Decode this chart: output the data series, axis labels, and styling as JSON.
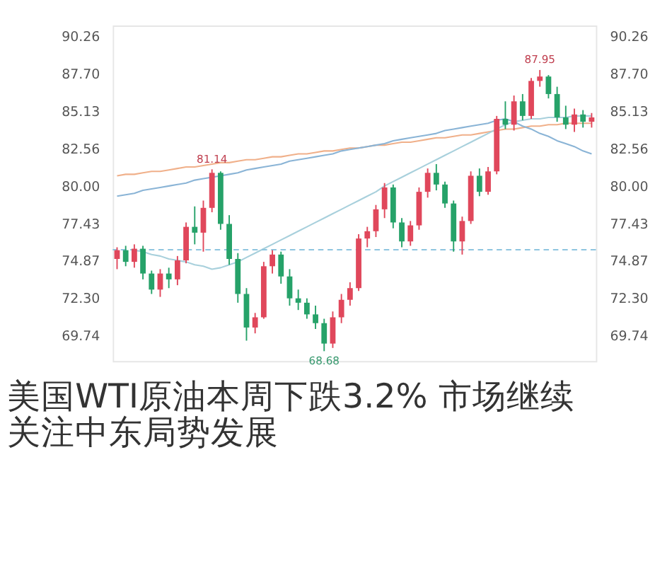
{
  "chart_data": {
    "type": "candlestick",
    "title": "美国WTI原油本周下跌3.2% 市场继续关注中东局势发展",
    "categories": [
      null,
      null,
      null,
      null,
      null,
      null,
      null,
      null,
      null,
      null,
      null,
      null,
      null,
      null,
      null,
      null,
      null,
      null,
      null,
      null,
      null,
      null,
      null,
      null,
      null,
      null,
      null,
      null,
      null,
      null,
      null,
      null,
      null,
      null,
      null,
      null,
      null,
      null,
      null,
      null,
      null,
      null,
      null,
      null,
      null,
      null,
      null,
      null,
      null,
      null,
      null,
      null,
      null,
      null,
      null,
      null
    ],
    "ohlc": [
      [
        75.0,
        75.8,
        74.3,
        75.6
      ],
      [
        75.6,
        75.9,
        74.5,
        74.8
      ],
      [
        74.8,
        76.0,
        74.4,
        75.7
      ],
      [
        75.7,
        75.9,
        73.6,
        74.0
      ],
      [
        74.0,
        74.2,
        72.6,
        72.9
      ],
      [
        72.9,
        74.3,
        72.4,
        74.0
      ],
      [
        74.0,
        74.4,
        73.0,
        73.6
      ],
      [
        73.6,
        75.2,
        73.2,
        74.9
      ],
      [
        74.9,
        77.5,
        74.7,
        77.2
      ],
      [
        77.2,
        78.6,
        76.0,
        76.8
      ],
      [
        76.8,
        79.0,
        75.5,
        78.5
      ],
      [
        78.5,
        81.14,
        78.2,
        80.9
      ],
      [
        80.9,
        81.0,
        77.0,
        77.4
      ],
      [
        77.4,
        78.0,
        74.6,
        75.0
      ],
      [
        75.0,
        75.4,
        72.0,
        72.6
      ],
      [
        72.6,
        73.0,
        69.4,
        70.3
      ],
      [
        70.3,
        71.3,
        69.9,
        71.0
      ],
      [
        71.0,
        74.8,
        70.9,
        74.5
      ],
      [
        74.5,
        75.6,
        74.0,
        75.3
      ],
      [
        75.3,
        75.5,
        73.3,
        73.8
      ],
      [
        73.8,
        74.3,
        71.8,
        72.3
      ],
      [
        72.3,
        72.9,
        71.5,
        72.0
      ],
      [
        72.0,
        72.3,
        70.9,
        71.2
      ],
      [
        71.2,
        71.8,
        70.2,
        70.6
      ],
      [
        70.6,
        70.9,
        68.68,
        69.2
      ],
      [
        69.2,
        71.4,
        68.9,
        71.0
      ],
      [
        71.0,
        72.6,
        70.6,
        72.2
      ],
      [
        72.2,
        73.4,
        71.8,
        73.0
      ],
      [
        73.0,
        76.7,
        72.8,
        76.4
      ],
      [
        76.4,
        77.2,
        75.8,
        76.9
      ],
      [
        76.9,
        78.7,
        76.5,
        78.4
      ],
      [
        78.4,
        80.2,
        77.8,
        79.9
      ],
      [
        79.9,
        80.1,
        77.1,
        77.5
      ],
      [
        77.5,
        77.8,
        75.8,
        76.2
      ],
      [
        76.2,
        77.6,
        75.9,
        77.3
      ],
      [
        77.3,
        79.9,
        77.0,
        79.6
      ],
      [
        79.6,
        81.2,
        79.2,
        80.9
      ],
      [
        80.9,
        81.5,
        79.7,
        80.1
      ],
      [
        80.1,
        80.3,
        78.5,
        78.8
      ],
      [
        78.8,
        79.0,
        75.5,
        76.2
      ],
      [
        76.2,
        77.9,
        75.3,
        77.6
      ],
      [
        77.6,
        81.0,
        77.4,
        80.7
      ],
      [
        80.7,
        81.2,
        79.3,
        79.6
      ],
      [
        79.6,
        81.3,
        79.4,
        81.0
      ],
      [
        81.0,
        84.8,
        80.8,
        84.6
      ],
      [
        84.6,
        85.8,
        83.9,
        84.2
      ],
      [
        84.2,
        86.2,
        83.8,
        85.8
      ],
      [
        85.8,
        86.3,
        84.5,
        84.8
      ],
      [
        84.8,
        87.4,
        84.6,
        87.2
      ],
      [
        87.2,
        87.95,
        86.8,
        87.5
      ],
      [
        87.5,
        87.6,
        86.0,
        86.3
      ],
      [
        86.3,
        86.8,
        84.4,
        84.7
      ],
      [
        84.7,
        85.5,
        83.9,
        84.2
      ],
      [
        84.2,
        85.3,
        83.7,
        84.9
      ],
      [
        84.9,
        85.2,
        84.0,
        84.4
      ],
      [
        84.4,
        85.0,
        84.0,
        84.7
      ]
    ],
    "colors": [
      "#e0475b",
      "#26a269",
      "#e0475b",
      "#26a269",
      "#26a269",
      "#e0475b",
      "#26a269",
      "#e0475b",
      "#e0475b",
      "#26a269",
      "#e0475b",
      "#e0475b",
      "#26a269",
      "#26a269",
      "#26a269",
      "#26a269",
      "#e0475b",
      "#e0475b",
      "#e0475b",
      "#26a269",
      "#26a269",
      "#26a269",
      "#26a269",
      "#26a269",
      "#26a269",
      "#e0475b",
      "#e0475b",
      "#e0475b",
      "#e0475b",
      "#e0475b",
      "#e0475b",
      "#e0475b",
      "#26a269",
      "#26a269",
      "#e0475b",
      "#e0475b",
      "#e0475b",
      "#26a269",
      "#26a269",
      "#26a269",
      "#e0475b",
      "#e0475b",
      "#26a269",
      "#e0475b",
      "#e0475b",
      "#26a269",
      "#e0475b",
      "#26a269",
      "#e0475b",
      "#e0475b",
      "#26a269",
      "#26a269",
      "#26a269",
      "#e0475b",
      "#26a269",
      "#e0475b"
    ],
    "series": [
      {
        "type": "line",
        "color": "#f0b08a",
        "values": [
          80.7,
          80.8,
          80.8,
          80.9,
          81.0,
          81.0,
          81.1,
          81.2,
          81.3,
          81.3,
          81.4,
          81.5,
          81.6,
          81.6,
          81.7,
          81.8,
          81.8,
          81.9,
          82.0,
          82.0,
          82.1,
          82.2,
          82.2,
          82.3,
          82.4,
          82.4,
          82.5,
          82.6,
          82.6,
          82.7,
          82.8,
          82.8,
          82.9,
          83.0,
          83.0,
          83.1,
          83.2,
          83.3,
          83.3,
          83.4,
          83.5,
          83.5,
          83.6,
          83.7,
          83.8,
          83.9,
          83.9,
          84.0,
          84.1,
          84.1,
          84.2,
          84.2,
          84.3,
          84.3,
          84.3,
          84.3
        ]
      },
      {
        "type": "line",
        "color": "#8ab4d6",
        "values": [
          79.3,
          79.4,
          79.5,
          79.7,
          79.8,
          79.9,
          80.0,
          80.1,
          80.2,
          80.4,
          80.5,
          80.6,
          80.7,
          80.8,
          80.9,
          81.1,
          81.2,
          81.3,
          81.4,
          81.5,
          81.7,
          81.8,
          81.9,
          82.0,
          82.1,
          82.2,
          82.4,
          82.5,
          82.6,
          82.7,
          82.8,
          82.9,
          83.1,
          83.2,
          83.3,
          83.4,
          83.5,
          83.6,
          83.8,
          83.9,
          84.0,
          84.1,
          84.2,
          84.3,
          84.5,
          84.6,
          84.4,
          84.1,
          83.9,
          83.6,
          83.4,
          83.1,
          82.9,
          82.7,
          82.4,
          82.2
        ]
      },
      {
        "type": "line",
        "color": "#a8d0dc",
        "values": [
          null,
          null,
          75.6,
          75.5,
          75.3,
          75.2,
          75.0,
          74.9,
          74.8,
          74.6,
          74.5,
          74.3,
          74.4,
          74.6,
          74.8,
          75.1,
          75.4,
          75.7,
          76.0,
          76.3,
          76.6,
          76.9,
          77.2,
          77.5,
          77.8,
          78.1,
          78.4,
          78.7,
          79.0,
          79.3,
          79.6,
          80.0,
          80.3,
          80.6,
          80.9,
          81.2,
          81.5,
          81.8,
          82.1,
          82.4,
          82.7,
          83.0,
          83.3,
          83.6,
          83.9,
          84.2,
          84.4,
          84.5,
          84.6,
          84.6,
          84.7,
          84.7,
          84.7,
          84.8,
          84.8,
          84.8
        ]
      }
    ],
    "ylim": [
      68.0,
      91.0
    ],
    "yticks": [
      90.26,
      {
        "value": 87.7,
        "label": "87.70"
      },
      85.13,
      82.56,
      {
        "value": 80,
        "label": "80.00"
      },
      77.43,
      74.87,
      {
        "value": 72.3,
        "label": "72.30"
      },
      69.74
    ],
    "y2lim": [
      68.0,
      91.0
    ],
    "y2ticks": [
      90.26,
      {
        "value": 87.7,
        "label": "87.70"
      },
      85.13,
      82.56,
      {
        "value": 80,
        "label": "80.00"
      },
      77.43,
      74.87,
      {
        "value": 72.3,
        "label": "72.30"
      },
      69.74
    ],
    "tick_labels": "y",
    "grid": false,
    "ref_lines": [
      {
        "axis": "y",
        "value": 75.63,
        "color": "#8ec5e0",
        "line_style": "dashed"
      }
    ],
    "annotations": [
      {
        "text": "81.14",
        "y": 81.14
      },
      {
        "text": "68.68",
        "y": 68.68
      },
      {
        "text": "87.95",
        "y": 87.95
      }
    ]
  }
}
